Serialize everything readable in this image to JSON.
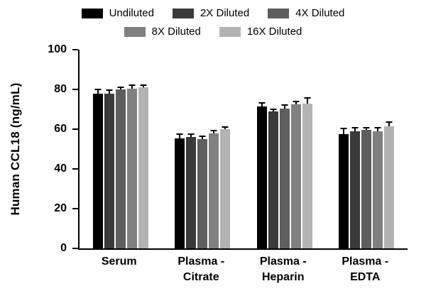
{
  "chart_data": {
    "type": "bar",
    "title": "",
    "ylabel": "Human CCL18 (ng/mL)",
    "xlabel": "",
    "ylim": [
      0,
      100
    ],
    "yticks": [
      0,
      20,
      40,
      60,
      80,
      100
    ],
    "grid": false,
    "legend_position": "top",
    "categories": [
      "Serum",
      "Plasma -\nCitrate",
      "Plasma -\nHeparin",
      "Plasma -\nEDTA"
    ],
    "series": [
      {
        "name": "Undiluted",
        "color": "#000000",
        "values": [
          78.0,
          55.5,
          71.5,
          57.5
        ],
        "errors": [
          1.5,
          1.5,
          1.2,
          2.5
        ]
      },
      {
        "name": "2X Diluted",
        "color": "#3a3a3a",
        "values": [
          78.0,
          56.0,
          69.0,
          59.0
        ],
        "errors": [
          1.2,
          1.2,
          0.8,
          1.2
        ]
      },
      {
        "name": "4X Diluted",
        "color": "#5e5e5e",
        "values": [
          80.0,
          55.0,
          70.5,
          59.5
        ],
        "errors": [
          0.8,
          1.0,
          1.2,
          0.8
        ]
      },
      {
        "name": "8X Diluted",
        "color": "#808080",
        "values": [
          80.5,
          58.0,
          72.5,
          59.0
        ],
        "errors": [
          1.2,
          1.0,
          1.0,
          1.2
        ]
      },
      {
        "name": "16X Diluted",
        "color": "#b3b3b3",
        "values": [
          81.0,
          60.0,
          73.0,
          61.5
        ],
        "errors": [
          0.8,
          0.8,
          2.3,
          1.8
        ]
      }
    ]
  }
}
